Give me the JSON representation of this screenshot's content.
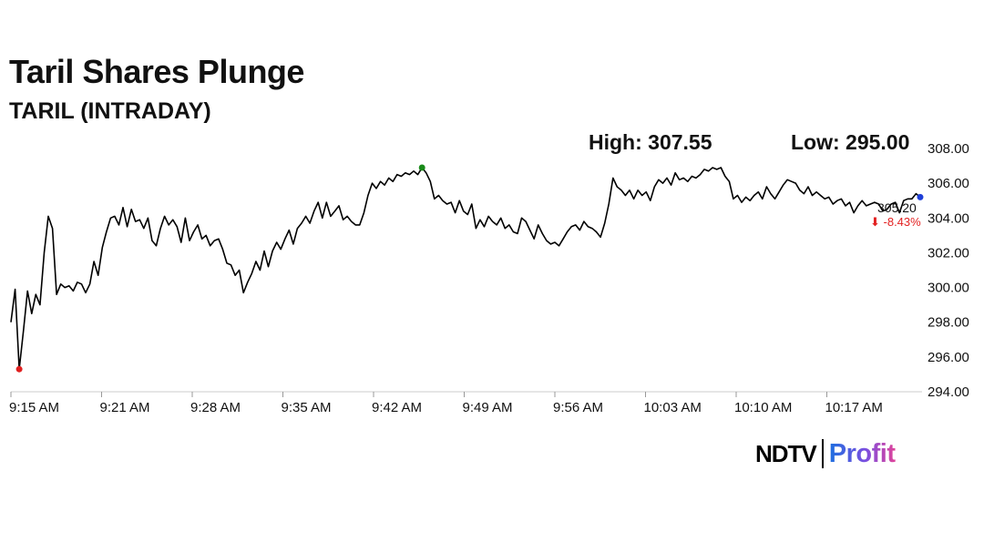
{
  "header": {
    "title": "Taril Shares Plunge",
    "subtitle": "TARIL (INTRADAY)",
    "high_text": "High: 307.55",
    "low_text": "Low: 295.00"
  },
  "last": {
    "price_text": "305.20",
    "change_text": "⬇ -8.43%"
  },
  "brand": {
    "ndtv": "NDTV",
    "profit": "Profit"
  },
  "colors": {
    "line": "#000000",
    "high_marker": "#1a8a1a",
    "low_marker": "#e02020",
    "last_marker": "#1f3fd8",
    "down": "#e32222"
  },
  "chart_data": {
    "type": "line",
    "title": "Taril Shares Plunge",
    "subtitle": "TARIL (INTRADAY)",
    "x_ticks": [
      "9:15 AM",
      "9:21 AM",
      "9:28 AM",
      "9:35 AM",
      "9:42 AM",
      "9:49 AM",
      "9:56 AM",
      "10:03 AM",
      "10:10 AM",
      "10:17 AM"
    ],
    "y_ticks": [
      "294.00",
      "296.00",
      "298.00",
      "300.00",
      "302.00",
      "304.00",
      "306.00",
      "308.00"
    ],
    "ylim": [
      294,
      308
    ],
    "y_axis_position": "right",
    "grid": false,
    "high": 307.55,
    "low": 295.0,
    "last": 305.2,
    "change_pct": -8.43,
    "series": [
      {
        "values": [
          298.0,
          299.9,
          295.3,
          297.5,
          299.8,
          298.5,
          299.6,
          299.0,
          302.0,
          304.1,
          303.4,
          299.6,
          300.2,
          300.0,
          300.1,
          299.8,
          300.3,
          300.2,
          299.7,
          300.2,
          301.5,
          300.7,
          302.3,
          303.2,
          304.0,
          304.1,
          303.6,
          304.6,
          303.5,
          304.5,
          303.8,
          303.9,
          303.4,
          304.0,
          302.7,
          302.4,
          303.4,
          304.1,
          303.6,
          303.9,
          303.5,
          302.6,
          304.0,
          302.7,
          303.2,
          303.6,
          302.8,
          303.0,
          302.4,
          302.7,
          302.8,
          302.2,
          301.4,
          301.3,
          300.7,
          301.0,
          299.7,
          300.3,
          300.8,
          301.5,
          301.0,
          302.1,
          301.2,
          302.1,
          302.6,
          302.2,
          302.8,
          303.3,
          302.5,
          303.4,
          303.7,
          304.1,
          303.7,
          304.4,
          304.9,
          304.0,
          304.9,
          304.1,
          304.4,
          304.7,
          303.9,
          304.1,
          303.8,
          303.6,
          303.6,
          304.3,
          305.3,
          306.0,
          305.7,
          306.1,
          305.9,
          306.3,
          306.1,
          306.5,
          306.4,
          306.6,
          306.5,
          306.7,
          306.5,
          306.9,
          306.6,
          306.1,
          305.1,
          305.3,
          305.0,
          304.8,
          304.9,
          304.3,
          305.0,
          304.4,
          304.2,
          304.8,
          303.4,
          303.9,
          303.5,
          304.1,
          303.8,
          303.6,
          304.0,
          303.4,
          303.6,
          303.2,
          303.1,
          304.0,
          303.8,
          303.3,
          302.8,
          303.6,
          303.1,
          302.7,
          302.5,
          302.6,
          302.4,
          302.8,
          303.2,
          303.5,
          303.6,
          303.3,
          303.8,
          303.5,
          303.4,
          303.2,
          302.9,
          303.7,
          304.8,
          306.3,
          305.8,
          305.6,
          305.3,
          305.6,
          305.1,
          305.6,
          305.3,
          305.5,
          305.0,
          305.8,
          306.2,
          306.0,
          306.3,
          305.9,
          306.6,
          306.2,
          306.3,
          306.1,
          306.4,
          306.3,
          306.5,
          306.8,
          306.7,
          306.9,
          306.8,
          306.9,
          306.4,
          306.1,
          305.1,
          305.3,
          304.9,
          305.2,
          305.0,
          305.3,
          305.5,
          305.1,
          305.8,
          305.4,
          305.1,
          305.5,
          305.9,
          306.2,
          306.1,
          306.0,
          305.6,
          305.4,
          305.8,
          305.3,
          305.5,
          305.3,
          305.1,
          305.2,
          304.8,
          305.0,
          305.1,
          304.7,
          304.9,
          304.3,
          304.7,
          305.0,
          304.7,
          304.8,
          304.9,
          304.8,
          304.4,
          304.5,
          304.8,
          304.9,
          304.3,
          305.0,
          305.1,
          305.1,
          305.4,
          305.2
        ]
      }
    ]
  }
}
